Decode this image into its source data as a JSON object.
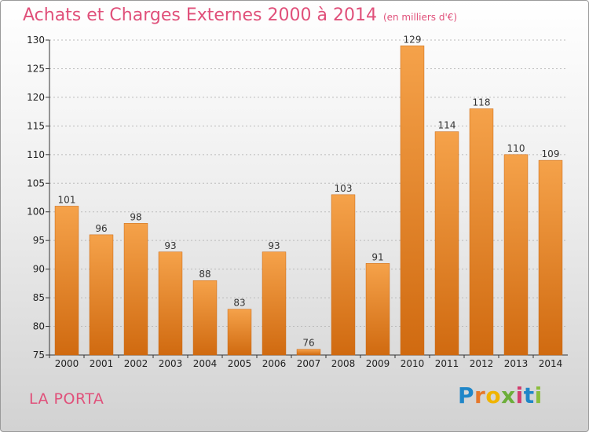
{
  "title": "Achats et Charges Externes 2000 à 2014",
  "subtitle": "(en milliers d'€)",
  "place": "LA PORTA",
  "logo": {
    "letters": [
      "P",
      "r",
      "o",
      "x",
      "i",
      "t",
      "i"
    ],
    "colors": [
      "#1f86c8",
      "#e6772a",
      "#f0b400",
      "#6cae3a",
      "#d23d6f",
      "#1f86c8",
      "#8bbd3b"
    ]
  },
  "colors": {
    "title": "#e0507a",
    "bar_light": "#f5a24a",
    "bar_dark": "#d06a10",
    "grid": "#bbbbbb"
  },
  "chart_data": {
    "type": "bar",
    "title": "Achats et Charges Externes 2000 à 2014",
    "subtitle": "(en milliers d'€)",
    "categories": [
      "2000",
      "2001",
      "2002",
      "2003",
      "2004",
      "2005",
      "2006",
      "2007",
      "2008",
      "2009",
      "2010",
      "2011",
      "2012",
      "2013",
      "2014"
    ],
    "values": [
      101,
      96,
      98,
      93,
      88,
      83,
      93,
      76,
      103,
      91,
      129,
      114,
      118,
      110,
      109
    ],
    "ylim": [
      75,
      130
    ],
    "yticks": [
      75,
      80,
      85,
      90,
      95,
      100,
      105,
      110,
      115,
      120,
      125,
      130
    ],
    "grid": true,
    "data_labels": true
  }
}
